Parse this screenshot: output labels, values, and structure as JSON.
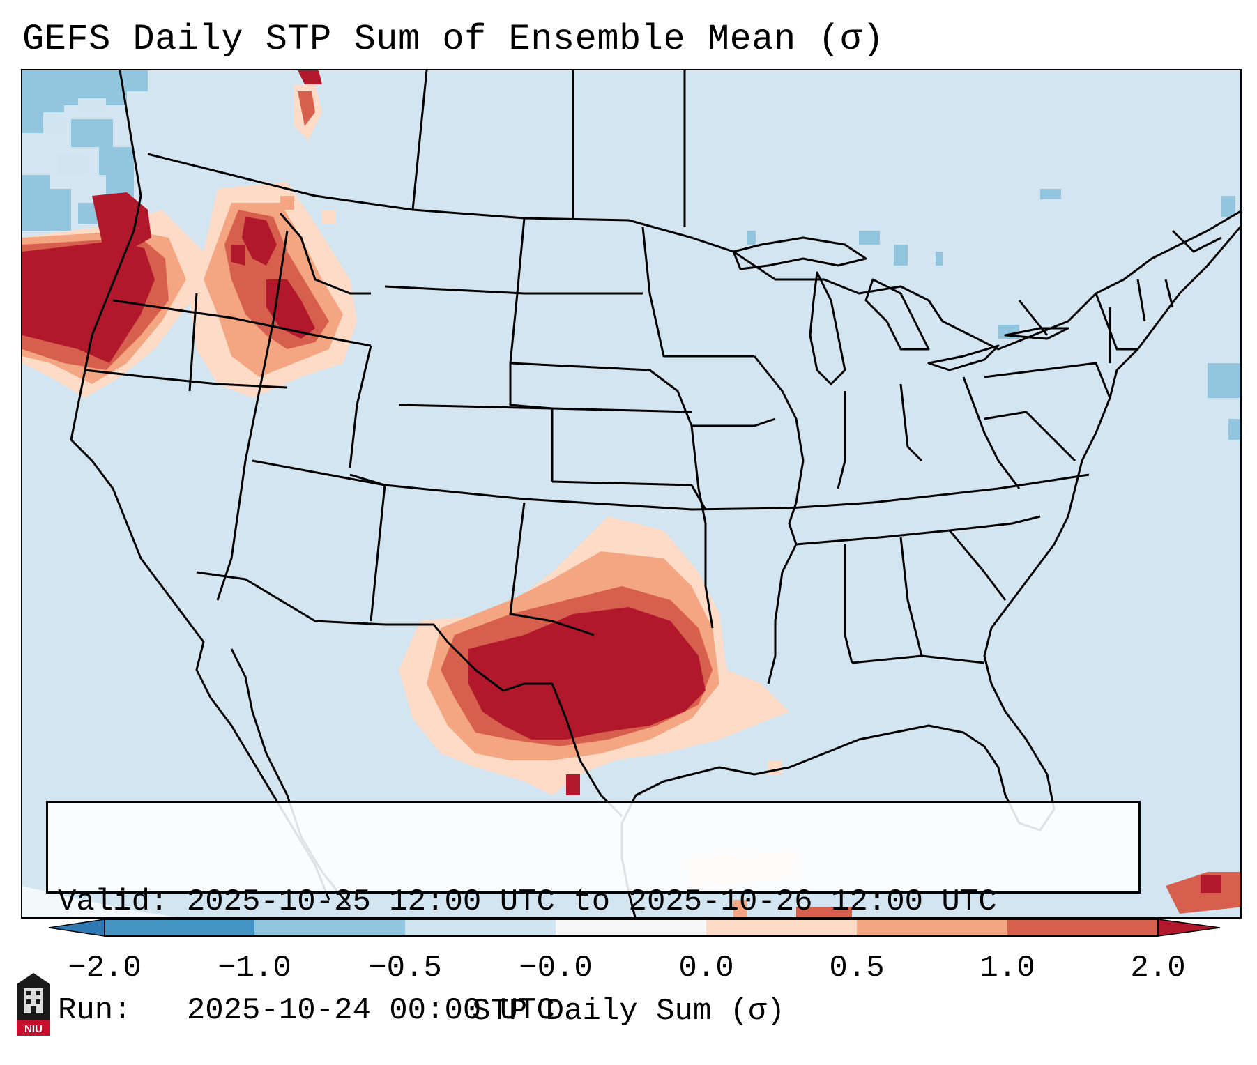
{
  "title": "GEFS Daily STP Sum of Ensemble Mean (σ)",
  "info": {
    "valid_line": "Valid: 2025-10-25 12:00 UTC to 2025-10-26 12:00 UTC",
    "run_line": "Run:   2025-10-24 00:00 UTC"
  },
  "colorbar": {
    "label": "STP Daily Sum (σ)",
    "ticks": [
      "−2.0",
      "−1.0",
      "−0.5",
      "−0.0",
      "0.0",
      "0.5",
      "1.0",
      "2.0"
    ],
    "colors": {
      "under": "#2f79b5",
      "bin_neg2_neg1": "#4393c3",
      "bin_neg1_neg05": "#92c5de",
      "bin_neg05_0": "#d1e5f0",
      "bin_zero": "#f7f7f7",
      "bin_0_05": "#fddbc7",
      "bin_05_1": "#f4a582",
      "bin_1_2": "#d6604d",
      "over": "#b2182b"
    }
  },
  "map": {
    "background": "#d2e5f0",
    "features": [
      "state-boundaries",
      "coastlines",
      "country-borders",
      "great-lakes"
    ],
    "highlight_regions": [
      {
        "name": "Pacific Northwest",
        "category": "over 2.0"
      },
      {
        "name": "Idaho / Oregon",
        "category": "1.0 to 2.0"
      },
      {
        "name": "Texas / Oklahoma",
        "category": "over 2.0"
      }
    ]
  },
  "logo": {
    "text": "NIU"
  }
}
